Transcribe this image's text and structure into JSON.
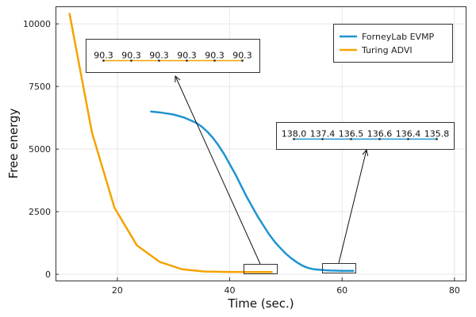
{
  "chart_data": {
    "type": "line",
    "xlabel": "Time (sec.)",
    "ylabel": "Free energy",
    "xlim": [
      9,
      82
    ],
    "ylim": [
      -250,
      10700
    ],
    "xticks": [
      20,
      40,
      60,
      80
    ],
    "yticks": [
      0,
      2500,
      5000,
      7500,
      10000
    ],
    "grid": true,
    "legend_position": "top-right",
    "series": [
      {
        "name": "ForneyLab EVMP",
        "color": "#1f93d0",
        "x": [
          26,
          28,
          30,
          32,
          34,
          35,
          36,
          37,
          38,
          39,
          40,
          41,
          42,
          43,
          44,
          45,
          46,
          47,
          48,
          49,
          50,
          51,
          52,
          53,
          54,
          55,
          56,
          57,
          58,
          59,
          60,
          61,
          62
        ],
        "y": [
          6500,
          6450,
          6380,
          6250,
          6050,
          5900,
          5700,
          5450,
          5150,
          4800,
          4400,
          4000,
          3550,
          3100,
          2700,
          2300,
          1950,
          1600,
          1300,
          1050,
          820,
          630,
          470,
          340,
          250,
          200,
          180,
          160,
          150,
          145,
          140,
          138,
          136
        ]
      },
      {
        "name": "Turing ADVI",
        "color": "#f5a300",
        "x": [
          11.5,
          15.5,
          19.5,
          23.5,
          27.5,
          31.5,
          35.5,
          39.5,
          43.5,
          47.5
        ],
        "y": [
          10400,
          5650,
          2650,
          1150,
          500,
          200,
          110,
          95,
          92,
          90
        ]
      }
    ],
    "insets": [
      {
        "series": "Turing ADVI",
        "color": "#f5a300",
        "labels": [
          "90.3",
          "90.3",
          "90.3",
          "90.3",
          "90.3",
          "90.3"
        ]
      },
      {
        "series": "ForneyLab EVMP",
        "color": "#1f93d0",
        "labels": [
          "138.0",
          "137.4",
          "136.5",
          "136.6",
          "136.4",
          "135.8"
        ]
      }
    ]
  }
}
